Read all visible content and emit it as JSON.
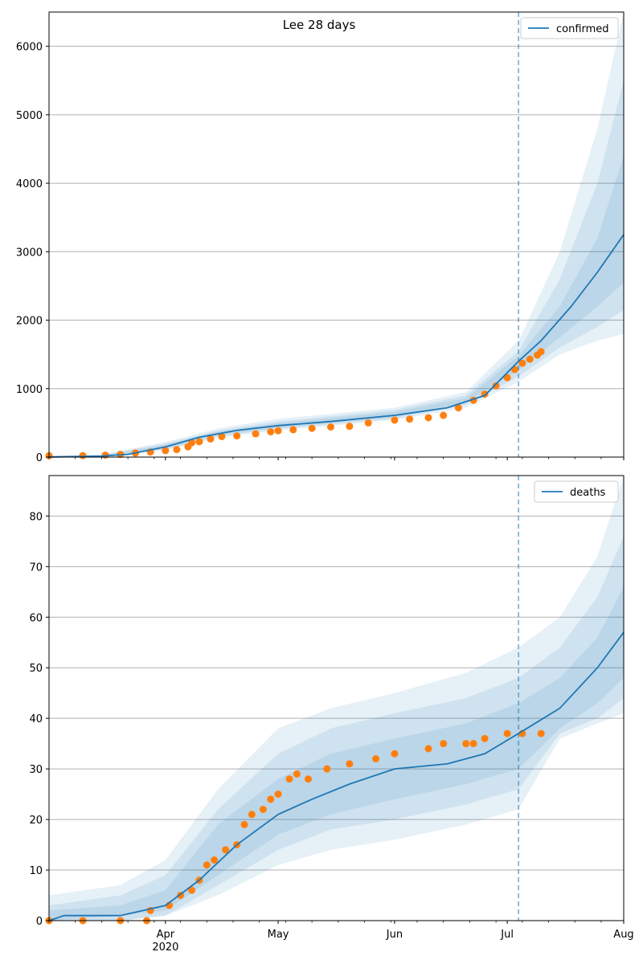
{
  "title": "Lee 28 days",
  "colors": {
    "model": "#1f77b4",
    "observed": "#ff7f0e",
    "band": "#1f77b4",
    "vline": "#1f77b4",
    "grid": "#b0b0b0"
  },
  "x_axis": {
    "domain": [
      "2020-03-01",
      "2020-08-01"
    ],
    "ticks": [
      {
        "date": "2020-04-01",
        "label": "Apr"
      },
      {
        "date": "2020-05-01",
        "label": "May"
      },
      {
        "date": "2020-06-01",
        "label": "Jun"
      },
      {
        "date": "2020-07-01",
        "label": "Jul"
      },
      {
        "date": "2020-08-01",
        "label": "Aug"
      }
    ],
    "year_label": "2020"
  },
  "forecast_start": "2020-07-04",
  "chart_data": [
    {
      "type": "line",
      "series_name": "confirmed",
      "legend": "top-right",
      "ylim": [
        0,
        6500
      ],
      "yticks": [
        0,
        1000,
        2000,
        3000,
        4000,
        5000,
        6000
      ],
      "grid": "horizontal",
      "median": {
        "x": [
          "2020-03-01",
          "2020-03-15",
          "2020-03-22",
          "2020-04-01",
          "2020-04-10",
          "2020-04-20",
          "2020-05-01",
          "2020-05-15",
          "2020-06-01",
          "2020-06-15",
          "2020-06-25",
          "2020-07-04",
          "2020-07-10",
          "2020-07-18",
          "2020-07-25",
          "2020-08-01"
        ],
        "y": [
          0,
          15,
          40,
          150,
          290,
          390,
          460,
          520,
          610,
          720,
          900,
          1400,
          1700,
          2200,
          2700,
          3250
        ]
      },
      "bands": [
        {
          "x": [
            "2020-03-01",
            "2020-03-15",
            "2020-04-01",
            "2020-04-15",
            "2020-05-01",
            "2020-06-01",
            "2020-06-20",
            "2020-07-04",
            "2020-07-15",
            "2020-07-25",
            "2020-08-01"
          ],
          "lo": [
            0,
            5,
            100,
            280,
            390,
            540,
            720,
            1100,
            1500,
            1700,
            1800
          ],
          "hi": [
            30,
            40,
            220,
            420,
            560,
            720,
            950,
            1700,
            3000,
            4800,
            6500
          ]
        },
        {
          "x": [
            "2020-03-01",
            "2020-03-15",
            "2020-04-01",
            "2020-04-15",
            "2020-05-01",
            "2020-06-01",
            "2020-06-20",
            "2020-07-04",
            "2020-07-15",
            "2020-07-25",
            "2020-08-01"
          ],
          "lo": [
            0,
            8,
            110,
            300,
            410,
            560,
            760,
            1180,
            1600,
            1900,
            2150
          ],
          "hi": [
            20,
            30,
            200,
            390,
            520,
            690,
            900,
            1550,
            2600,
            4000,
            5500
          ]
        },
        {
          "x": [
            "2020-03-01",
            "2020-03-15",
            "2020-04-01",
            "2020-04-15",
            "2020-05-01",
            "2020-06-01",
            "2020-06-20",
            "2020-07-04",
            "2020-07-15",
            "2020-07-25",
            "2020-08-01"
          ],
          "lo": [
            0,
            10,
            125,
            320,
            430,
            580,
            800,
            1270,
            1750,
            2200,
            2550
          ],
          "hi": [
            10,
            22,
            180,
            370,
            495,
            660,
            860,
            1480,
            2200,
            3200,
            4400
          ]
        }
      ],
      "observed": {
        "x": [
          "2020-03-01",
          "2020-03-10",
          "2020-03-16",
          "2020-03-20",
          "2020-03-24",
          "2020-03-28",
          "2020-04-01",
          "2020-04-04",
          "2020-04-07",
          "2020-04-08",
          "2020-04-10",
          "2020-04-13",
          "2020-04-16",
          "2020-04-20",
          "2020-04-25",
          "2020-04-29",
          "2020-05-01",
          "2020-05-05",
          "2020-05-10",
          "2020-05-15",
          "2020-05-20",
          "2020-05-25",
          "2020-06-01",
          "2020-06-05",
          "2020-06-10",
          "2020-06-14",
          "2020-06-18",
          "2020-06-22",
          "2020-06-25",
          "2020-06-28",
          "2020-07-01",
          "2020-07-03",
          "2020-07-05",
          "2020-07-07",
          "2020-07-09",
          "2020-07-10"
        ],
        "y": [
          20,
          22,
          28,
          40,
          60,
          75,
          95,
          110,
          150,
          210,
          225,
          265,
          300,
          310,
          340,
          370,
          385,
          400,
          420,
          440,
          450,
          500,
          540,
          555,
          575,
          610,
          720,
          830,
          920,
          1040,
          1160,
          1280,
          1370,
          1430,
          1490,
          1540
        ]
      }
    },
    {
      "type": "line",
      "series_name": "deaths",
      "legend": "top-right",
      "ylim": [
        0,
        88
      ],
      "yticks": [
        0,
        10,
        20,
        30,
        40,
        50,
        60,
        70,
        80
      ],
      "grid": "horizontal",
      "median": {
        "x": [
          "2020-03-01",
          "2020-03-05",
          "2020-03-20",
          "2020-04-01",
          "2020-04-10",
          "2020-04-20",
          "2020-05-01",
          "2020-05-10",
          "2020-05-20",
          "2020-06-01",
          "2020-06-15",
          "2020-06-25",
          "2020-07-04",
          "2020-07-15",
          "2020-07-25",
          "2020-08-01"
        ],
        "y": [
          0,
          1,
          1,
          3,
          8,
          15,
          21,
          24,
          27,
          30,
          31,
          33,
          37,
          42,
          50,
          57
        ]
      },
      "bands": [
        {
          "x": [
            "2020-03-01",
            "2020-03-20",
            "2020-04-01",
            "2020-04-15",
            "2020-05-01",
            "2020-05-15",
            "2020-06-01",
            "2020-06-20",
            "2020-07-04",
            "2020-07-15",
            "2020-07-25",
            "2020-08-01"
          ],
          "lo": [
            0,
            0,
            1,
            5,
            11,
            14,
            16,
            19,
            22,
            36,
            39,
            41
          ],
          "hi": [
            5,
            7,
            12,
            26,
            38,
            42,
            45,
            49,
            54,
            60,
            72,
            88
          ]
        },
        {
          "x": [
            "2020-03-01",
            "2020-03-20",
            "2020-04-01",
            "2020-04-15",
            "2020-05-01",
            "2020-05-15",
            "2020-06-01",
            "2020-06-20",
            "2020-07-04",
            "2020-07-15",
            "2020-07-25",
            "2020-08-01"
          ],
          "lo": [
            0,
            0,
            1,
            7,
            14,
            18,
            20,
            23,
            26,
            37,
            40,
            44
          ],
          "hi": [
            3,
            5,
            9,
            22,
            33,
            38,
            41,
            44,
            48,
            54,
            64,
            76
          ]
        },
        {
          "x": [
            "2020-03-01",
            "2020-03-20",
            "2020-04-01",
            "2020-04-15",
            "2020-05-01",
            "2020-05-15",
            "2020-06-01",
            "2020-06-20",
            "2020-07-04",
            "2020-07-15",
            "2020-07-25",
            "2020-08-01"
          ],
          "lo": [
            0,
            1,
            2,
            9,
            17,
            21,
            24,
            27,
            30,
            38,
            43,
            48
          ],
          "hi": [
            2,
            3,
            6,
            19,
            28,
            33,
            36,
            39,
            43,
            48,
            56,
            66
          ]
        }
      ],
      "observed": {
        "x": [
          "2020-03-01",
          "2020-03-10",
          "2020-03-20",
          "2020-03-27",
          "2020-03-28",
          "2020-04-02",
          "2020-04-05",
          "2020-04-08",
          "2020-04-10",
          "2020-04-12",
          "2020-04-14",
          "2020-04-17",
          "2020-04-20",
          "2020-04-22",
          "2020-04-24",
          "2020-04-27",
          "2020-04-29",
          "2020-05-01",
          "2020-05-04",
          "2020-05-06",
          "2020-05-09",
          "2020-05-14",
          "2020-05-20",
          "2020-05-27",
          "2020-06-01",
          "2020-06-10",
          "2020-06-14",
          "2020-06-20",
          "2020-06-22",
          "2020-06-25",
          "2020-07-01",
          "2020-07-05",
          "2020-07-10"
        ],
        "y": [
          0,
          0,
          0,
          0,
          2,
          3,
          5,
          6,
          8,
          11,
          12,
          14,
          15,
          19,
          21,
          22,
          24,
          25,
          28,
          29,
          28,
          30,
          31,
          32,
          33,
          34,
          35,
          35,
          35,
          36,
          37,
          37,
          37
        ]
      }
    }
  ]
}
